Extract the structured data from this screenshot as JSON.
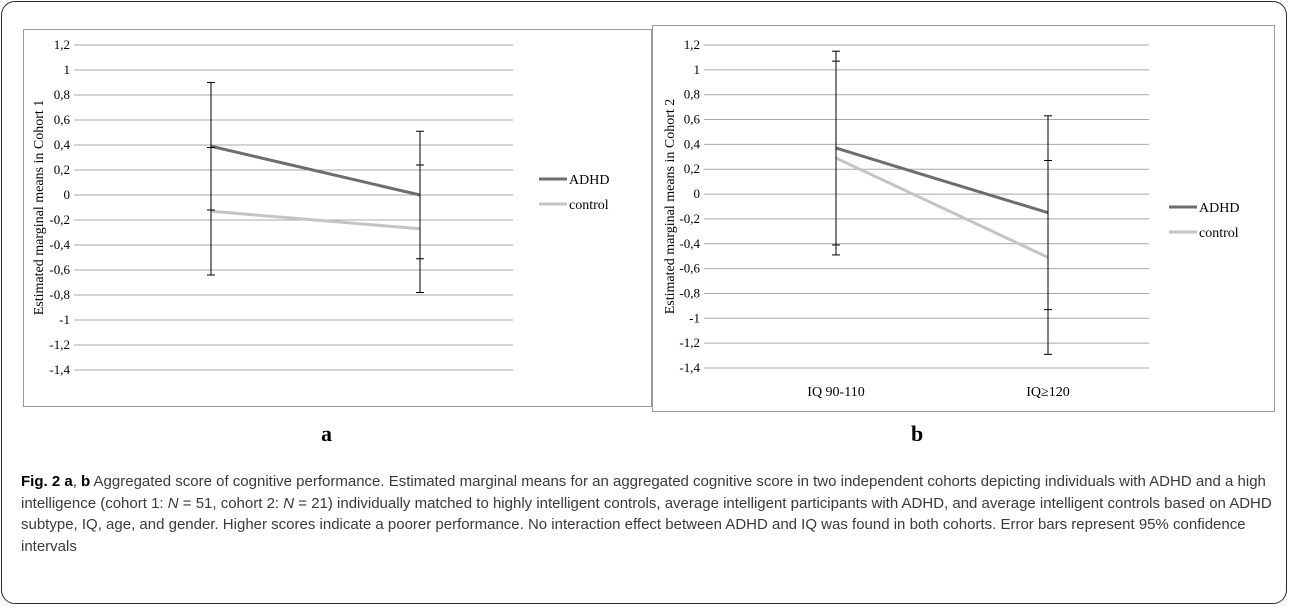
{
  "caption": {
    "fig_label": "Fig. 2",
    "lead_a": "a",
    "lead_sep": ",",
    "lead_b": "b",
    "p1": " Aggregated score of cognitive performance. Estimated marginal means for an aggregated cognitive score in two independent cohorts depicting individuals with ADHD and a high intelligence (cohort 1: ",
    "n1_var": "N",
    "n1_val": " = 51, cohort 2: ",
    "n2_var": "N",
    "n2_val": " = 21) individually matched to highly intelligent controls, average intelligent participants with ADHD, and average intelligent controls based on ADHD subtype, IQ, age, and gender. Higher scores indicate a poorer performance. No interaction effect between ADHD and IQ was found in both cohorts. Error bars represent 95% confidence intervals"
  },
  "panel_labels": {
    "a": "a",
    "b": "b"
  },
  "chart_data": [
    {
      "type": "line",
      "panel": "a",
      "ylabel": "Estimated marginal means in Cohort 1",
      "xlabel": "",
      "categories": [
        "",
        ""
      ],
      "ylim": [
        -1.4,
        1.2
      ],
      "ytick_step": 0.2,
      "yticks": [
        "1,2",
        "1",
        "0,8",
        "0,6",
        "0,4",
        "0,2",
        "0",
        "-0,2",
        "-0,4",
        "-0,6",
        "-0,8",
        "-1",
        "-1,2",
        "-1,4"
      ],
      "grid": true,
      "legend_position": "right",
      "series": [
        {
          "name": "ADHD",
          "color": "#6d6d6d",
          "values": [
            0.39,
            0.0
          ],
          "ci_low": [
            -0.12,
            -0.51
          ],
          "ci_high": [
            0.9,
            0.51
          ]
        },
        {
          "name": "control",
          "color": "#c4c4c4",
          "values": [
            -0.13,
            -0.27
          ],
          "ci_low": [
            -0.64,
            -0.78
          ],
          "ci_high": [
            0.38,
            0.24
          ]
        }
      ]
    },
    {
      "type": "line",
      "panel": "b",
      "ylabel": "Estimated marginal means in Cohort 2",
      "xlabel": "",
      "categories": [
        "IQ 90-110",
        "IQ≥120"
      ],
      "ylim": [
        -1.4,
        1.2
      ],
      "ytick_step": 0.2,
      "yticks": [
        "1,2",
        "1",
        "0,8",
        "0,6",
        "0,4",
        "0,2",
        "0",
        "-0,2",
        "-0,4",
        "-0,6",
        "-0,8",
        "-1",
        "-1,2",
        "-1,4"
      ],
      "grid": true,
      "legend_position": "right",
      "series": [
        {
          "name": "ADHD",
          "color": "#6d6d6d",
          "values": [
            0.37,
            -0.15
          ],
          "ci_low": [
            -0.41,
            -0.93
          ],
          "ci_high": [
            1.15,
            0.63
          ]
        },
        {
          "name": "control",
          "color": "#c4c4c4",
          "values": [
            0.29,
            -0.51
          ],
          "ci_low": [
            -0.49,
            -1.29
          ],
          "ci_high": [
            1.07,
            0.27
          ]
        }
      ]
    }
  ]
}
